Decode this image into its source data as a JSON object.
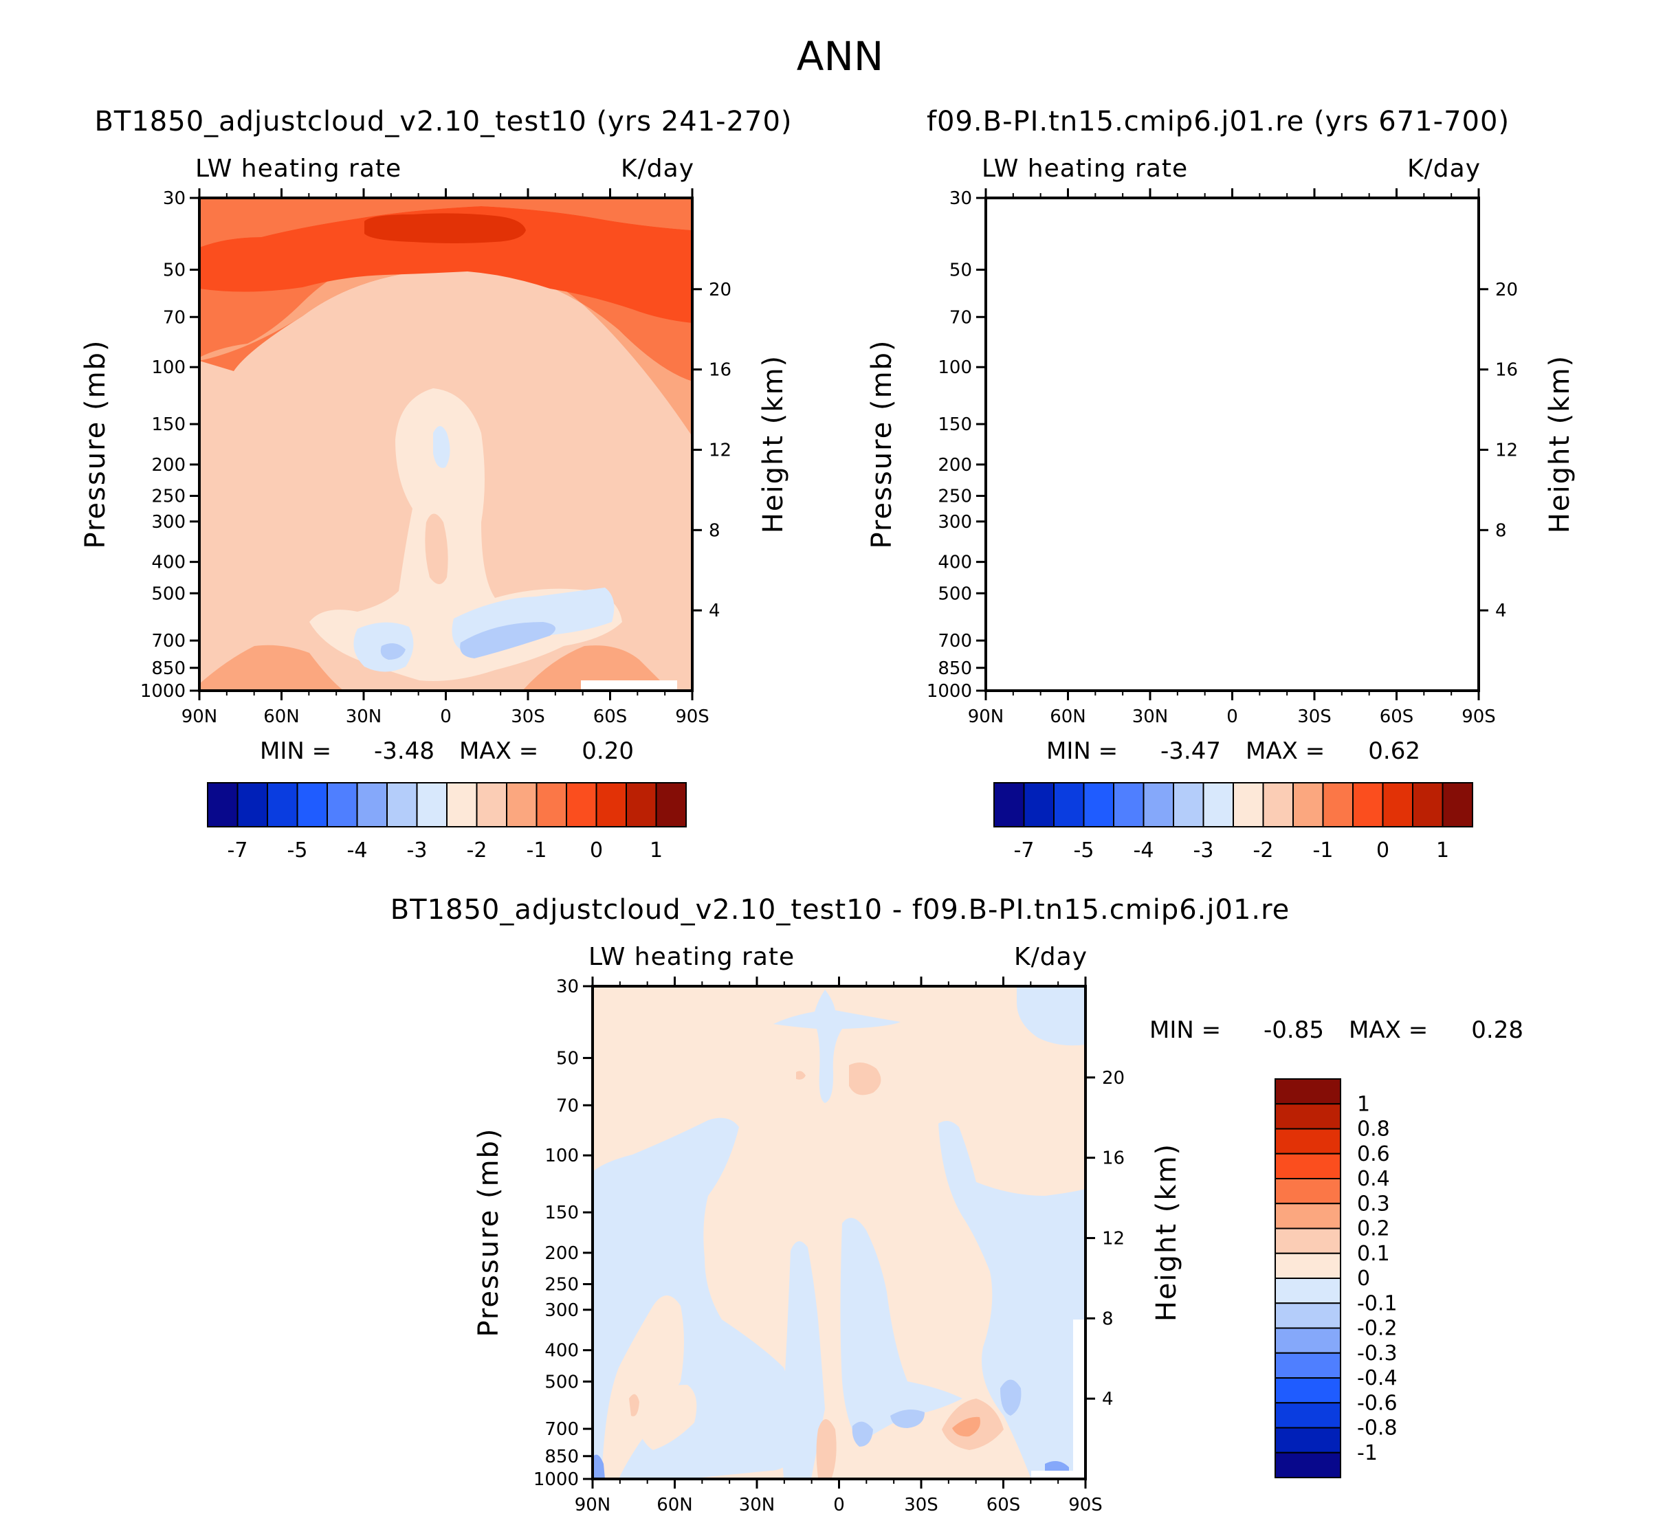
{
  "figure_title": "ANN",
  "chart_data": [
    {
      "type": "contour",
      "id": "model",
      "title": "BT1850_adjustcloud_v2.10_test10 (yrs 241-270)",
      "left_label": "LW heating rate",
      "right_label": "K/day",
      "xlabel": "",
      "ylabel": "Pressure (mb)",
      "y2label": "Height (km)",
      "x_ticks": [
        "90N",
        "60N",
        "30N",
        "0",
        "30S",
        "60S",
        "90S"
      ],
      "y_ticks": [
        30,
        50,
        70,
        100,
        150,
        200,
        250,
        300,
        400,
        500,
        700,
        850,
        1000
      ],
      "y2_ticks": [
        20,
        16,
        12,
        8,
        4
      ],
      "min_label": "MIN =",
      "min_value": "-3.48",
      "max_label": "MAX =",
      "max_value": "0.20",
      "levels": [
        -7,
        -6,
        -5,
        -4.5,
        -4,
        -3.5,
        -3,
        -2.5,
        -2,
        -1.5,
        -1,
        -0.5,
        0,
        0.5,
        1
      ],
      "colorbar_labels": [
        "-7",
        "-5",
        "-4",
        "-3",
        "-2",
        "-1",
        "0",
        "1"
      ]
    },
    {
      "type": "contour",
      "id": "control",
      "title": "f09.B-PI.tn15.cmip6.j01.re (yrs 671-700)",
      "left_label": "LW heating rate",
      "right_label": "K/day",
      "xlabel": "",
      "ylabel": "Pressure (mb)",
      "y2label": "Height (km)",
      "x_ticks": [
        "90N",
        "60N",
        "30N",
        "0",
        "30S",
        "60S",
        "90S"
      ],
      "y_ticks": [
        30,
        50,
        70,
        100,
        150,
        200,
        250,
        300,
        400,
        500,
        700,
        850,
        1000
      ],
      "y2_ticks": [
        20,
        16,
        12,
        8,
        4
      ],
      "min_label": "MIN =",
      "min_value": "-3.47",
      "max_label": "MAX =",
      "max_value": "0.62",
      "levels": [
        -7,
        -6,
        -5,
        -4.5,
        -4,
        -3.5,
        -3,
        -2.5,
        -2,
        -1.5,
        -1,
        -0.5,
        0,
        0.5,
        1
      ],
      "colorbar_labels": [
        "-7",
        "-5",
        "-4",
        "-3",
        "-2",
        "-1",
        "0",
        "1"
      ]
    },
    {
      "type": "contour",
      "id": "difference",
      "title": "BT1850_adjustcloud_v2.10_test10 - f09.B-PI.tn15.cmip6.j01.re",
      "left_label": "LW heating rate",
      "right_label": "K/day",
      "xlabel": "",
      "ylabel": "Pressure (mb)",
      "y2label": "Height (km)",
      "x_ticks": [
        "90N",
        "60N",
        "30N",
        "0",
        "30S",
        "60S",
        "90S"
      ],
      "y_ticks": [
        30,
        50,
        70,
        100,
        150,
        200,
        250,
        300,
        400,
        500,
        700,
        850,
        1000
      ],
      "y2_ticks": [
        20,
        16,
        12,
        8,
        4
      ],
      "min_label": "MIN =",
      "min_value": "-0.85",
      "max_label": "MAX =",
      "max_value": "0.28",
      "levels": [
        1,
        0.8,
        0.6,
        0.4,
        0.3,
        0.2,
        0.1,
        0,
        -0.1,
        -0.2,
        -0.3,
        -0.4,
        -0.6,
        -0.8,
        -1
      ],
      "colorbar_labels": [
        "1",
        "0.8",
        "0.6",
        "0.4",
        "0.3",
        "0.2",
        "0.1",
        "0",
        "-0.1",
        "-0.2",
        "-0.3",
        "-0.4",
        "-0.6",
        "-0.8",
        "-1"
      ]
    }
  ],
  "colors": {
    "fill": [
      "#08088c",
      "#0020b8",
      "#0a3de0",
      "#1f5cff",
      "#4f7fff",
      "#85a8fa",
      "#b4cdfa",
      "#d8e8fc",
      "#fde8d8",
      "#fbcdb5",
      "#fba77f",
      "#fb7747",
      "#fb4e1e",
      "#e23206",
      "#bb2003",
      "#850d06"
    ]
  }
}
